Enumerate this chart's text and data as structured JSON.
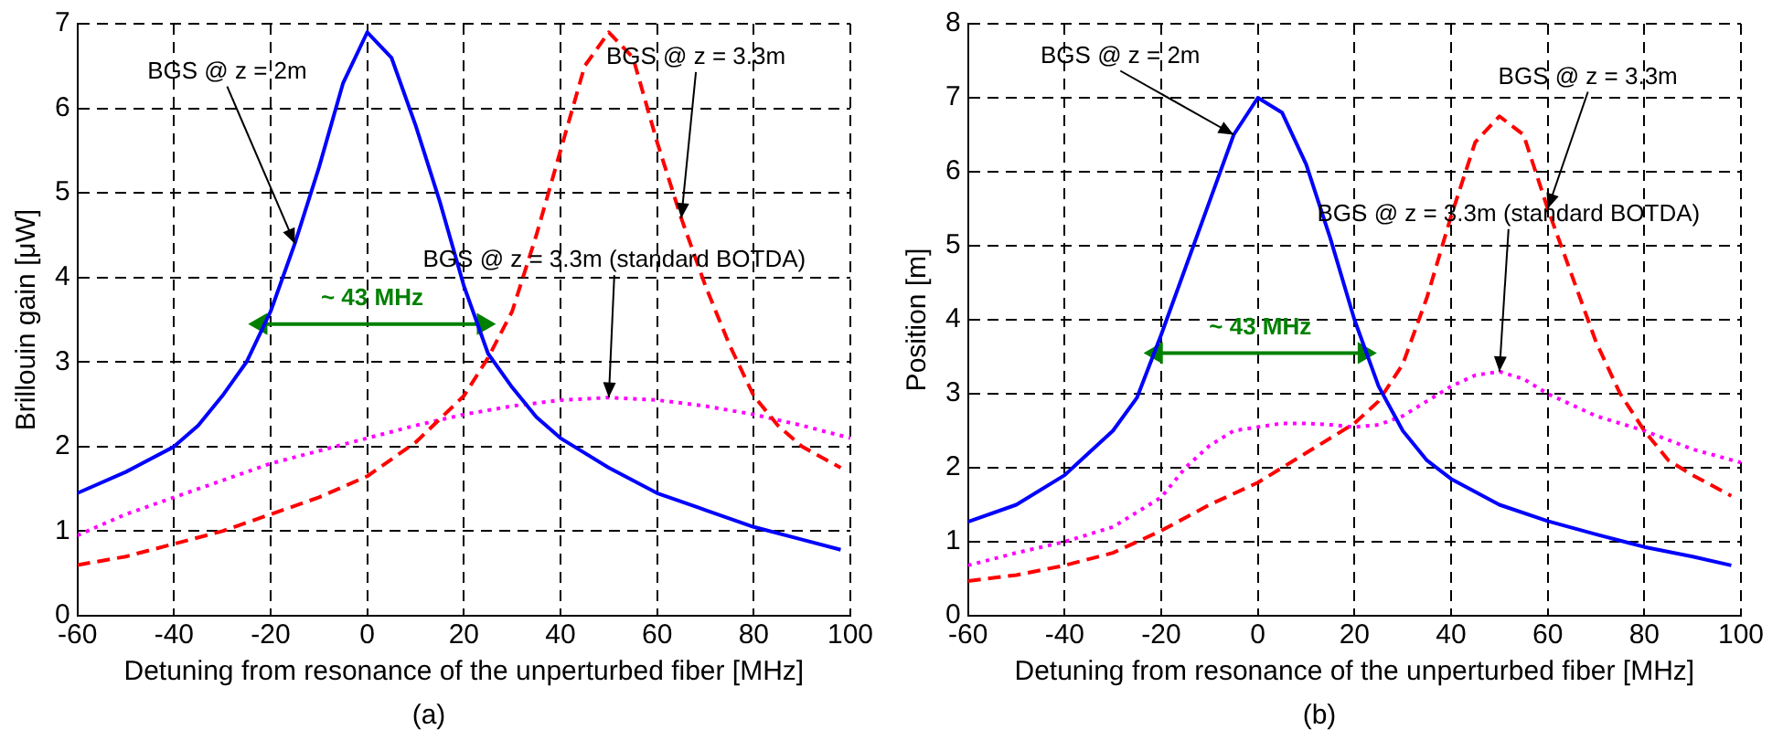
{
  "chart_data": [
    {
      "type": "line",
      "title": "(a)",
      "xlabel": "Detuning from resonance of the unperturbed fiber [MHz]",
      "ylabel": "Brillouin gain [μW]",
      "xlim": [
        -60,
        100
      ],
      "xticks": [
        -60,
        -40,
        -20,
        0,
        20,
        40,
        60,
        80,
        100
      ],
      "ylim": [
        0,
        7
      ],
      "yticks": [
        0,
        1,
        2,
        3,
        4,
        5,
        6,
        7
      ],
      "grid": true,
      "legend": false,
      "marker": "none",
      "series": [
        {
          "color": "#0000ff",
          "line_style": "solid",
          "x": [
            -60,
            -50,
            -40,
            -35,
            -30,
            -25,
            -20,
            -15,
            -10,
            -5,
            0,
            5,
            10,
            15,
            20,
            25,
            30,
            35,
            40,
            50,
            60,
            70,
            80,
            90,
            98
          ],
          "values": [
            1.45,
            1.7,
            2.0,
            2.25,
            2.6,
            3.0,
            3.6,
            4.4,
            5.3,
            6.3,
            6.9,
            6.6,
            5.8,
            4.9,
            3.9,
            3.1,
            2.7,
            2.35,
            2.1,
            1.75,
            1.45,
            1.25,
            1.05,
            0.9,
            0.78
          ]
        },
        {
          "color": "#ff0000",
          "line_style": "dashed",
          "x": [
            -60,
            -50,
            -40,
            -30,
            -20,
            -10,
            0,
            10,
            20,
            25,
            30,
            35,
            40,
            45,
            50,
            55,
            60,
            65,
            70,
            75,
            80,
            85,
            90,
            98
          ],
          "values": [
            0.6,
            0.7,
            0.85,
            1.0,
            1.2,
            1.4,
            1.65,
            2.05,
            2.6,
            3.05,
            3.6,
            4.5,
            5.5,
            6.5,
            6.9,
            6.6,
            5.6,
            4.7,
            3.9,
            3.2,
            2.6,
            2.25,
            2.0,
            1.75
          ]
        },
        {
          "color": "#ff00ff",
          "line_style": "dotted",
          "x": [
            -60,
            -50,
            -40,
            -30,
            -20,
            -10,
            0,
            10,
            20,
            30,
            40,
            50,
            60,
            70,
            80,
            90,
            100
          ],
          "values": [
            0.95,
            1.2,
            1.4,
            1.6,
            1.8,
            1.95,
            2.1,
            2.25,
            2.38,
            2.48,
            2.55,
            2.58,
            2.55,
            2.48,
            2.38,
            2.25,
            2.1
          ]
        },
        {
          "color": "#008000",
          "line_style": "solid",
          "marker": "triangle",
          "x": [
            -22,
            24
          ],
          "values": [
            3.45,
            3.45
          ]
        }
      ],
      "annotations": [
        {
          "text": "BGS @ z = 2m",
          "x": -15,
          "y": 4.4
        },
        {
          "text": "BGS @ z = 3.3m",
          "x": 65,
          "y": 4.7
        },
        {
          "text": "BGS @ z = 3.3m (standard BOTDA)",
          "x": 50,
          "y": 2.58
        },
        {
          "text": "~ 43 MHz",
          "x": 1,
          "y": 3.45
        }
      ]
    },
    {
      "type": "line",
      "title": "(b)",
      "xlabel": "Detuning from resonance of the unperturbed fiber [MHz]",
      "ylabel": "Position [m]",
      "xlim": [
        -60,
        100
      ],
      "xticks": [
        -60,
        -40,
        -20,
        0,
        20,
        40,
        60,
        80,
        100
      ],
      "ylim": [
        0,
        8
      ],
      "yticks": [
        0,
        1,
        2,
        3,
        4,
        5,
        6,
        7,
        8
      ],
      "grid": true,
      "legend": false,
      "marker": "none",
      "series": [
        {
          "color": "#0000ff",
          "line_style": "solid",
          "x": [
            -60,
            -50,
            -40,
            -35,
            -30,
            -25,
            -20,
            -15,
            -10,
            -5,
            0,
            5,
            10,
            15,
            20,
            25,
            30,
            35,
            40,
            50,
            60,
            70,
            80,
            90,
            98
          ],
          "values": [
            1.27,
            1.5,
            1.9,
            2.2,
            2.5,
            2.95,
            3.8,
            4.7,
            5.6,
            6.5,
            7.0,
            6.8,
            6.1,
            5.1,
            4.0,
            3.1,
            2.5,
            2.1,
            1.85,
            1.5,
            1.28,
            1.1,
            0.93,
            0.8,
            0.68
          ]
        },
        {
          "color": "#ff0000",
          "line_style": "dashed",
          "x": [
            -60,
            -50,
            -40,
            -30,
            -25,
            -20,
            -10,
            0,
            10,
            20,
            25,
            30,
            35,
            40,
            45,
            50,
            55,
            60,
            65,
            70,
            75,
            80,
            85,
            90,
            98
          ],
          "values": [
            0.47,
            0.55,
            0.68,
            0.85,
            1.0,
            1.15,
            1.5,
            1.8,
            2.2,
            2.6,
            2.9,
            3.4,
            4.3,
            5.4,
            6.4,
            6.75,
            6.5,
            5.5,
            4.6,
            3.7,
            3.0,
            2.5,
            2.1,
            1.9,
            1.62
          ]
        },
        {
          "color": "#ff00ff",
          "line_style": "dotted",
          "x": [
            -60,
            -50,
            -40,
            -30,
            -20,
            -15,
            -10,
            -5,
            0,
            5,
            10,
            15,
            20,
            25,
            30,
            35,
            40,
            45,
            50,
            55,
            60,
            70,
            80,
            90,
            100
          ],
          "values": [
            0.68,
            0.85,
            1.0,
            1.2,
            1.6,
            2.0,
            2.3,
            2.5,
            2.55,
            2.6,
            2.6,
            2.58,
            2.55,
            2.58,
            2.7,
            2.9,
            3.1,
            3.25,
            3.3,
            3.2,
            3.0,
            2.7,
            2.5,
            2.25,
            2.07
          ]
        },
        {
          "color": "#008000",
          "line_style": "solid",
          "marker": "triangle",
          "x": [
            -21,
            22
          ],
          "values": [
            3.55,
            3.55
          ]
        }
      ],
      "annotations": [
        {
          "text": "BGS @ z = 2m",
          "x": -5,
          "y": 6.5
        },
        {
          "text": "BGS @ z = 3.3m",
          "x": 60,
          "y": 5.5
        },
        {
          "text": "BGS @ z = 3.3m (standard BOTDA)",
          "x": 50,
          "y": 3.3
        },
        {
          "text": "~ 43 MHz",
          "x": 0.5,
          "y": 3.55
        }
      ]
    }
  ]
}
